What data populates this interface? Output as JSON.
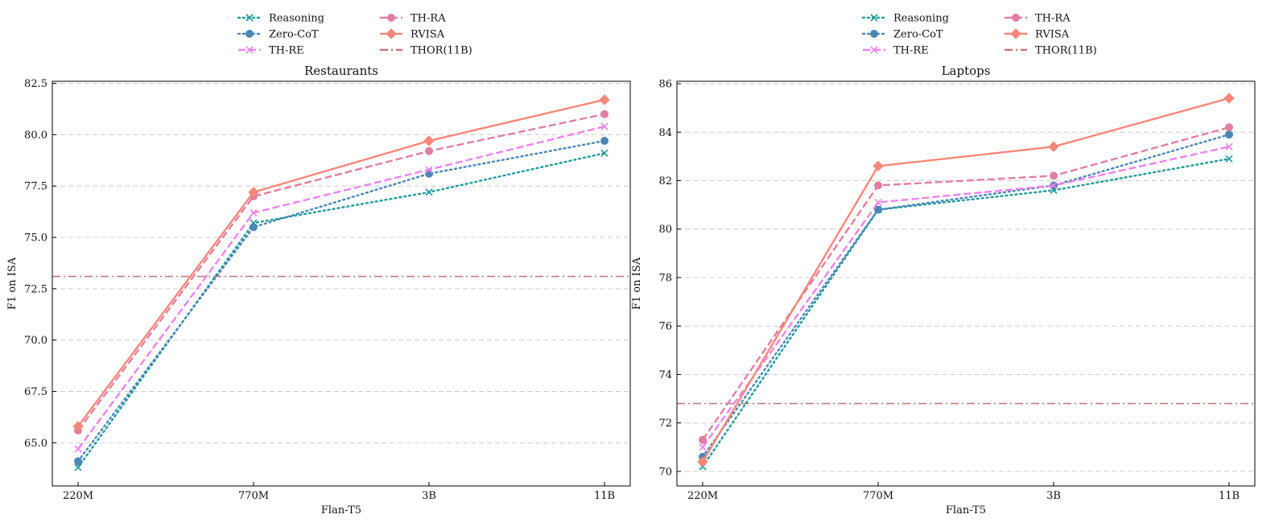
{
  "chart_data": [
    {
      "type": "line",
      "title": "Restaurants",
      "xlabel": "Flan-T5",
      "ylabel": "F1 on ISA",
      "categories": [
        "220M",
        "770M",
        "3B",
        "11B"
      ],
      "ylim": [
        62.9,
        82.6
      ],
      "yticks": [
        65.0,
        67.5,
        70.0,
        72.5,
        75.0,
        77.5,
        80.0,
        82.5
      ],
      "ytick_labels": [
        "65.0",
        "67.5",
        "70.0",
        "72.5",
        "75.0",
        "77.5",
        "80.0",
        "82.5"
      ],
      "grid": "horizontal-dashed",
      "legend": "top-center-outside",
      "series": [
        {
          "name": "Reasoning",
          "values": [
            63.8,
            75.7,
            77.2,
            79.1
          ],
          "color": "#1f9a9a",
          "dash": "2,4",
          "marker": "x"
        },
        {
          "name": "Zero-CoT",
          "values": [
            64.1,
            75.5,
            78.1,
            79.7
          ],
          "color": "#4b86b4",
          "dash": "2,4",
          "marker": "circle"
        },
        {
          "name": "TH-RE",
          "values": [
            64.7,
            76.2,
            78.3,
            80.4
          ],
          "color": "#ee82ee",
          "dash": "9,4",
          "marker": "x"
        },
        {
          "name": "TH-RA",
          "values": [
            65.6,
            77.0,
            79.2,
            81.0
          ],
          "color": "#e07fa2",
          "dash": "9,4",
          "marker": "circle"
        },
        {
          "name": "RVISA",
          "values": [
            65.8,
            77.2,
            79.7,
            81.7
          ],
          "color": "#f8877a",
          "dash": "",
          "marker": "diamond"
        }
      ],
      "reference_lines": [
        {
          "name": "THOR(11B)",
          "value": 73.1,
          "color": "#c27a7a",
          "dash": "10,4,2,4"
        }
      ]
    },
    {
      "type": "line",
      "title": "Laptops",
      "xlabel": "Flan-T5",
      "ylabel": "F1 on ISA",
      "categories": [
        "220M",
        "770M",
        "3B",
        "11B"
      ],
      "ylim": [
        69.4,
        86.1
      ],
      "yticks": [
        70,
        72,
        74,
        76,
        78,
        80,
        82,
        84,
        86
      ],
      "ytick_labels": [
        "70",
        "72",
        "74",
        "76",
        "78",
        "80",
        "82",
        "84",
        "86"
      ],
      "grid": "horizontal-dashed",
      "legend": "top-center-outside",
      "series": [
        {
          "name": "Reasoning",
          "values": [
            70.2,
            80.8,
            81.6,
            82.9
          ],
          "color": "#1f9a9a",
          "dash": "2,4",
          "marker": "x"
        },
        {
          "name": "Zero-CoT",
          "values": [
            70.6,
            80.8,
            81.8,
            83.9
          ],
          "color": "#4b86b4",
          "dash": "2,4",
          "marker": "circle"
        },
        {
          "name": "TH-RE",
          "values": [
            71.0,
            81.1,
            81.8,
            83.4
          ],
          "color": "#ee82ee",
          "dash": "9,4",
          "marker": "x"
        },
        {
          "name": "TH-RA",
          "values": [
            71.3,
            81.8,
            82.2,
            84.2
          ],
          "color": "#e07fa2",
          "dash": "9,4",
          "marker": "circle"
        },
        {
          "name": "RVISA",
          "values": [
            70.4,
            82.6,
            83.4,
            85.4
          ],
          "color": "#f8877a",
          "dash": "",
          "marker": "diamond"
        }
      ],
      "reference_lines": [
        {
          "name": "THOR(11B)",
          "value": 72.8,
          "color": "#c27a7a",
          "dash": "10,4,2,4"
        }
      ]
    }
  ]
}
